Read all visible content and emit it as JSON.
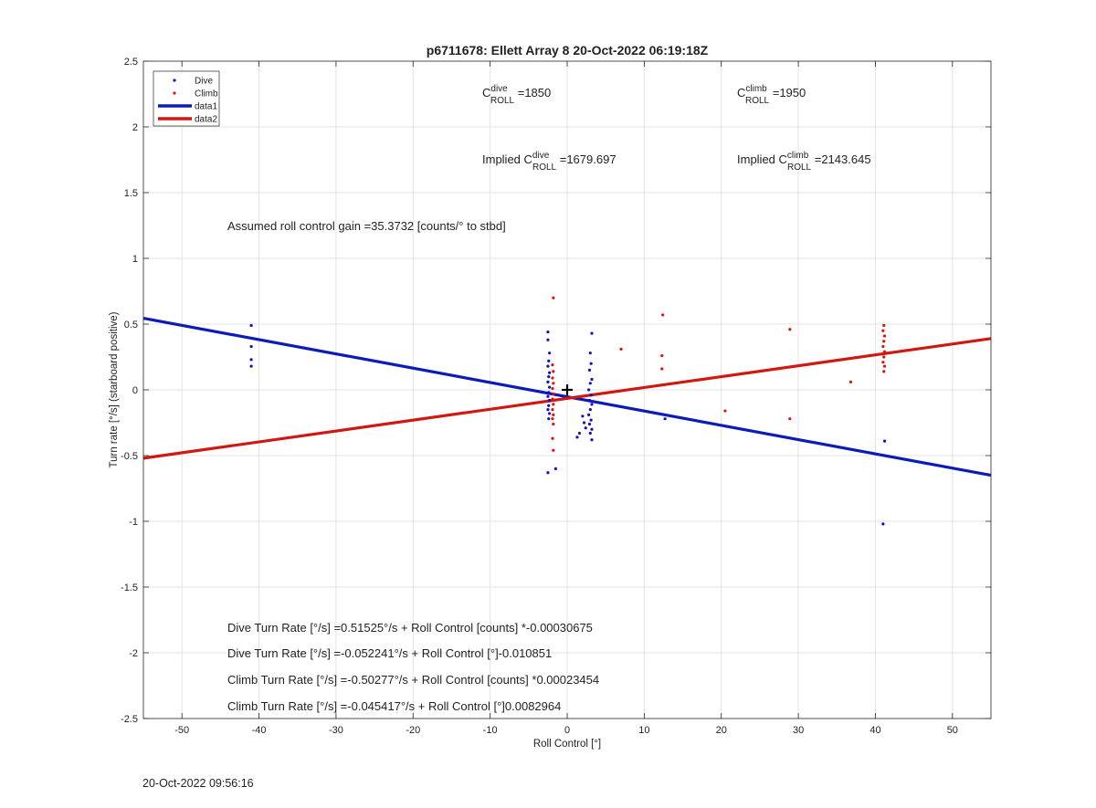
{
  "chart_data": {
    "type": "scatter",
    "title": "p6711678: Ellett Array 8 20-Oct-2022 06:19:18Z",
    "xlabel": "Roll Control [°]",
    "ylabel": "Turn rate [°/s] (starboard positive)",
    "xlim": [
      -55,
      55
    ],
    "ylim": [
      -2.5,
      2.5
    ],
    "xticks": [
      -50,
      -40,
      -30,
      -20,
      -10,
      0,
      10,
      20,
      30,
      40,
      50
    ],
    "yticks": [
      2.5,
      2,
      1.5,
      1,
      0.5,
      0,
      -0.5,
      -1,
      -1.5,
      -2,
      -2.5
    ],
    "xtick_labels": [
      "-50",
      "-40",
      "-30",
      "-20",
      "-10",
      "0",
      "10",
      "20",
      "30",
      "40",
      "50"
    ],
    "ytick_labels": [
      "2.5",
      "2",
      "1.5",
      "1",
      "0.5",
      "0",
      "-0.5",
      "-1",
      "-1.5",
      "-2",
      "-2.5"
    ],
    "grid": true,
    "legend_position": "top-left",
    "legend": [
      "Dive",
      "Climb",
      "data1",
      "data2"
    ],
    "series": [
      {
        "name": "Dive",
        "kind": "points",
        "color": "#1010c8",
        "points": [
          [
            -41,
            0.49
          ],
          [
            -41,
            0.33
          ],
          [
            -41,
            0.23
          ],
          [
            -41,
            0.18
          ],
          [
            -2.5,
            0.44
          ],
          [
            -2.5,
            0.38
          ],
          [
            -2.3,
            0.28
          ],
          [
            -2.4,
            0.22
          ],
          [
            -2.5,
            0.18
          ],
          [
            -2.3,
            0.13
          ],
          [
            -2.4,
            0.1
          ],
          [
            -2.5,
            0.06
          ],
          [
            -2.3,
            0.02
          ],
          [
            -2.4,
            -0.02
          ],
          [
            -2.5,
            -0.05
          ],
          [
            -2.3,
            -0.08
          ],
          [
            -2.4,
            -0.12
          ],
          [
            -2.5,
            -0.15
          ],
          [
            -2.3,
            -0.18
          ],
          [
            -2.4,
            -0.22
          ],
          [
            -2.5,
            -0.63
          ],
          [
            -1.5,
            -0.6
          ],
          [
            3.2,
            0.43
          ],
          [
            3.0,
            0.28
          ],
          [
            3.1,
            0.2
          ],
          [
            2.9,
            0.15
          ],
          [
            3.2,
            0.08
          ],
          [
            3.0,
            0.05
          ],
          [
            2.8,
            0.0
          ],
          [
            3.1,
            -0.04
          ],
          [
            2.9,
            -0.08
          ],
          [
            3.2,
            -0.11
          ],
          [
            3.0,
            -0.15
          ],
          [
            2.8,
            -0.19
          ],
          [
            3.1,
            -0.23
          ],
          [
            2.9,
            -0.26
          ],
          [
            3.2,
            -0.3
          ],
          [
            3.0,
            -0.33
          ],
          [
            3.2,
            -0.38
          ],
          [
            2.2,
            -0.25
          ],
          [
            2.0,
            -0.2
          ],
          [
            2.4,
            -0.29
          ],
          [
            1.3,
            -0.36
          ],
          [
            1.6,
            -0.33
          ],
          [
            12.7,
            -0.22
          ],
          [
            41.2,
            -0.39
          ],
          [
            41.0,
            -1.02
          ]
        ]
      },
      {
        "name": "Climb",
        "kind": "points",
        "color": "#e01010",
        "points": [
          [
            -1.8,
            0.7
          ],
          [
            -1.9,
            0.19
          ],
          [
            -1.8,
            0.14
          ],
          [
            -1.9,
            0.09
          ],
          [
            -1.8,
            0.05
          ],
          [
            -1.9,
            0.01
          ],
          [
            -1.8,
            -0.03
          ],
          [
            -1.9,
            -0.07
          ],
          [
            -1.8,
            -0.11
          ],
          [
            -1.9,
            -0.15
          ],
          [
            -1.8,
            -0.19
          ],
          [
            -1.9,
            -0.22
          ],
          [
            -1.8,
            -0.26
          ],
          [
            -1.9,
            -0.37
          ],
          [
            -1.8,
            -0.46
          ],
          [
            7.0,
            0.31
          ],
          [
            12.4,
            0.57
          ],
          [
            12.3,
            0.26
          ],
          [
            12.3,
            0.16
          ],
          [
            20.5,
            -0.16
          ],
          [
            28.9,
            0.46
          ],
          [
            28.9,
            -0.22
          ],
          [
            36.8,
            0.06
          ],
          [
            41.1,
            0.49
          ],
          [
            41.0,
            0.45
          ],
          [
            41.2,
            0.41
          ],
          [
            41.1,
            0.37
          ],
          [
            41.0,
            0.33
          ],
          [
            41.2,
            0.29
          ],
          [
            41.1,
            0.25
          ],
          [
            41.0,
            0.21
          ],
          [
            41.2,
            0.18
          ],
          [
            41.1,
            0.14
          ]
        ]
      },
      {
        "name": "data1",
        "kind": "line",
        "color": "#0c1ab8",
        "from": [
          -55,
          0.545
        ],
        "to": [
          55,
          -0.65
        ]
      },
      {
        "name": "data2",
        "kind": "line",
        "color": "#d01810",
        "from": [
          -55,
          -0.52
        ],
        "to": [
          55,
          0.39
        ]
      }
    ],
    "marker": {
      "x": 0,
      "y": 0,
      "symbol": "+"
    },
    "annotations": {
      "c_dive": {
        "base": "C",
        "sup": "dive",
        "sub": "ROLL",
        "suffix": " =1850"
      },
      "c_climb": {
        "base": "C",
        "sup": "climb",
        "sub": "ROLL",
        "suffix": " =1950"
      },
      "implied_dive": {
        "prefix": "Implied ",
        "base": "C",
        "sup": "dive",
        "sub": "ROLL",
        "suffix": " =1679.697"
      },
      "implied_climb": {
        "prefix": "Implied ",
        "base": "C",
        "sup": "climb",
        "sub": "ROLL",
        "suffix": " =2143.645"
      },
      "gain": "Assumed roll control gain =35.3732 [counts/° to stbd]",
      "eq1": "Dive Turn Rate [°/s] =0.51525°/s + Roll Control [counts] *-0.00030675",
      "eq2": "Dive Turn Rate [°/s] =-0.052241°/s + Roll Control [°]-0.010851",
      "eq3": "Climb Turn Rate [°/s] =-0.50277°/s + Roll Control [counts] *0.00023454",
      "eq4": "Climb Turn Rate [°/s] =-0.045417°/s + Roll Control [°]0.0082964"
    }
  },
  "footer": {
    "timestamp": "20-Oct-2022 09:56:16"
  }
}
